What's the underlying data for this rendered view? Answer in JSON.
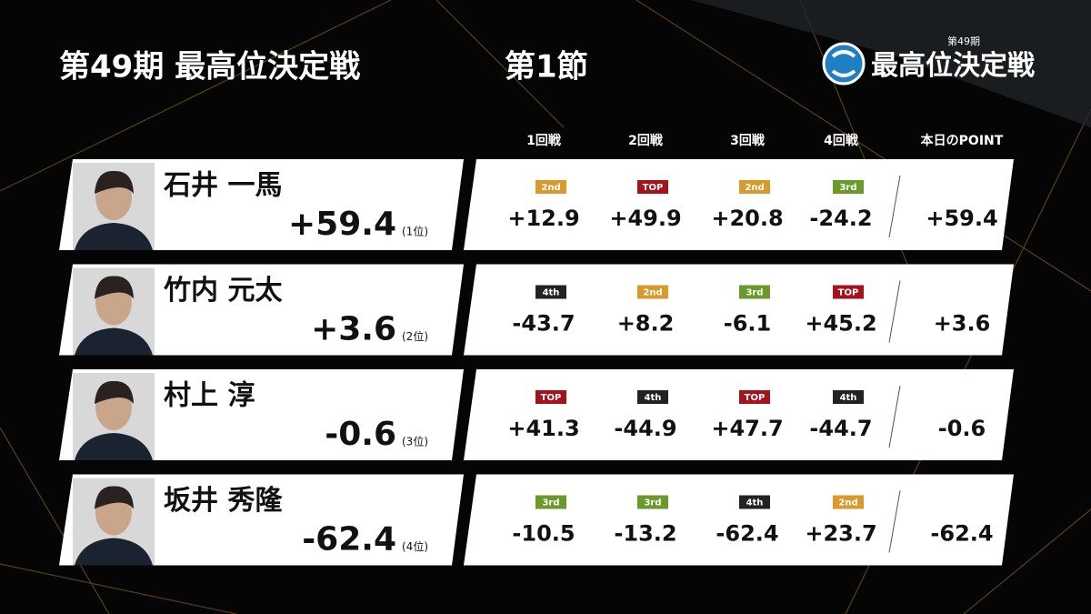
{
  "header": {
    "title": "第49期 最高位決定戦",
    "section": "第1節",
    "logo_edition": "第49期",
    "logo_text": "最高位決定戦"
  },
  "columns": [
    "1回戦",
    "2回戦",
    "3回戦",
    "4回戦",
    "本日のPOINT"
  ],
  "players": [
    {
      "name": "石井 一馬",
      "total": "+59.4",
      "rank": "(1位)",
      "point": "+59.4",
      "games": [
        {
          "badge": "2nd",
          "color": "#d99a2b",
          "score": "+12.9"
        },
        {
          "badge": "TOP",
          "color": "#a5121b",
          "score": "+49.9"
        },
        {
          "badge": "2nd",
          "color": "#d99a2b",
          "score": "+20.8"
        },
        {
          "badge": "3rd",
          "color": "#6b9a2c",
          "score": "-24.2"
        }
      ]
    },
    {
      "name": "竹内 元太",
      "total": "+3.6",
      "rank": "(2位)",
      "point": "+3.6",
      "games": [
        {
          "badge": "4th",
          "color": "#222222",
          "score": "-43.7"
        },
        {
          "badge": "2nd",
          "color": "#d99a2b",
          "score": "+8.2"
        },
        {
          "badge": "3rd",
          "color": "#6b9a2c",
          "score": "-6.1"
        },
        {
          "badge": "TOP",
          "color": "#a5121b",
          "score": "+45.2"
        }
      ]
    },
    {
      "name": "村上 淳",
      "total": "-0.6",
      "rank": "(3位)",
      "point": "-0.6",
      "games": [
        {
          "badge": "TOP",
          "color": "#a5121b",
          "score": "+41.3"
        },
        {
          "badge": "4th",
          "color": "#222222",
          "score": "-44.9"
        },
        {
          "badge": "TOP",
          "color": "#a5121b",
          "score": "+47.7"
        },
        {
          "badge": "4th",
          "color": "#222222",
          "score": "-44.7"
        }
      ]
    },
    {
      "name": "坂井 秀隆",
      "total": "-62.4",
      "rank": "(4位)",
      "point": "-62.4",
      "games": [
        {
          "badge": "3rd",
          "color": "#6b9a2c",
          "score": "-10.5"
        },
        {
          "badge": "3rd",
          "color": "#6b9a2c",
          "score": "-13.2"
        },
        {
          "badge": "4th",
          "color": "#222222",
          "score": "-62.4"
        },
        {
          "badge": "2nd",
          "color": "#d99a2b",
          "score": "+23.7"
        }
      ]
    }
  ]
}
